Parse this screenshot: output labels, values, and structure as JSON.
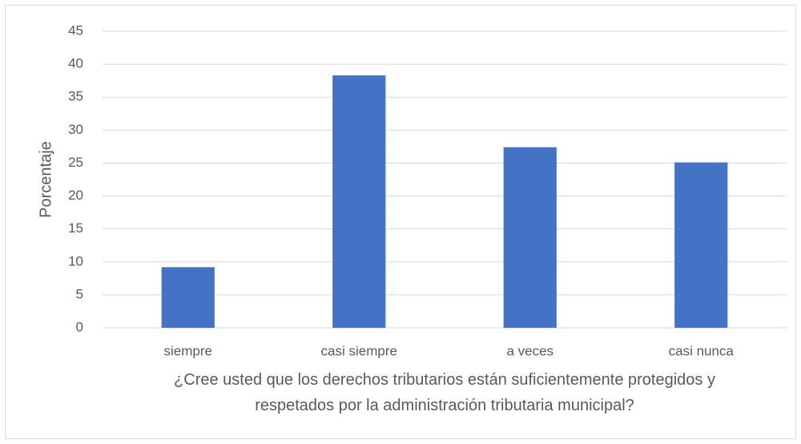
{
  "chart_data": {
    "type": "bar",
    "categories": [
      "siempre",
      "casi siempre",
      "a veces",
      "casi nunca"
    ],
    "values": [
      9.2,
      38.3,
      27.4,
      25.1
    ],
    "color": "#4472c4",
    "ylabel": "Porcentaje",
    "xlabel": "¿Cree usted que los derechos tributarios están suficientemente protegidos y respetados por la administración tributaria municipal?",
    "ylim": [
      0,
      45
    ],
    "yticks": [
      0,
      5,
      10,
      15,
      20,
      25,
      30,
      35,
      40,
      45
    ],
    "grid": true
  }
}
